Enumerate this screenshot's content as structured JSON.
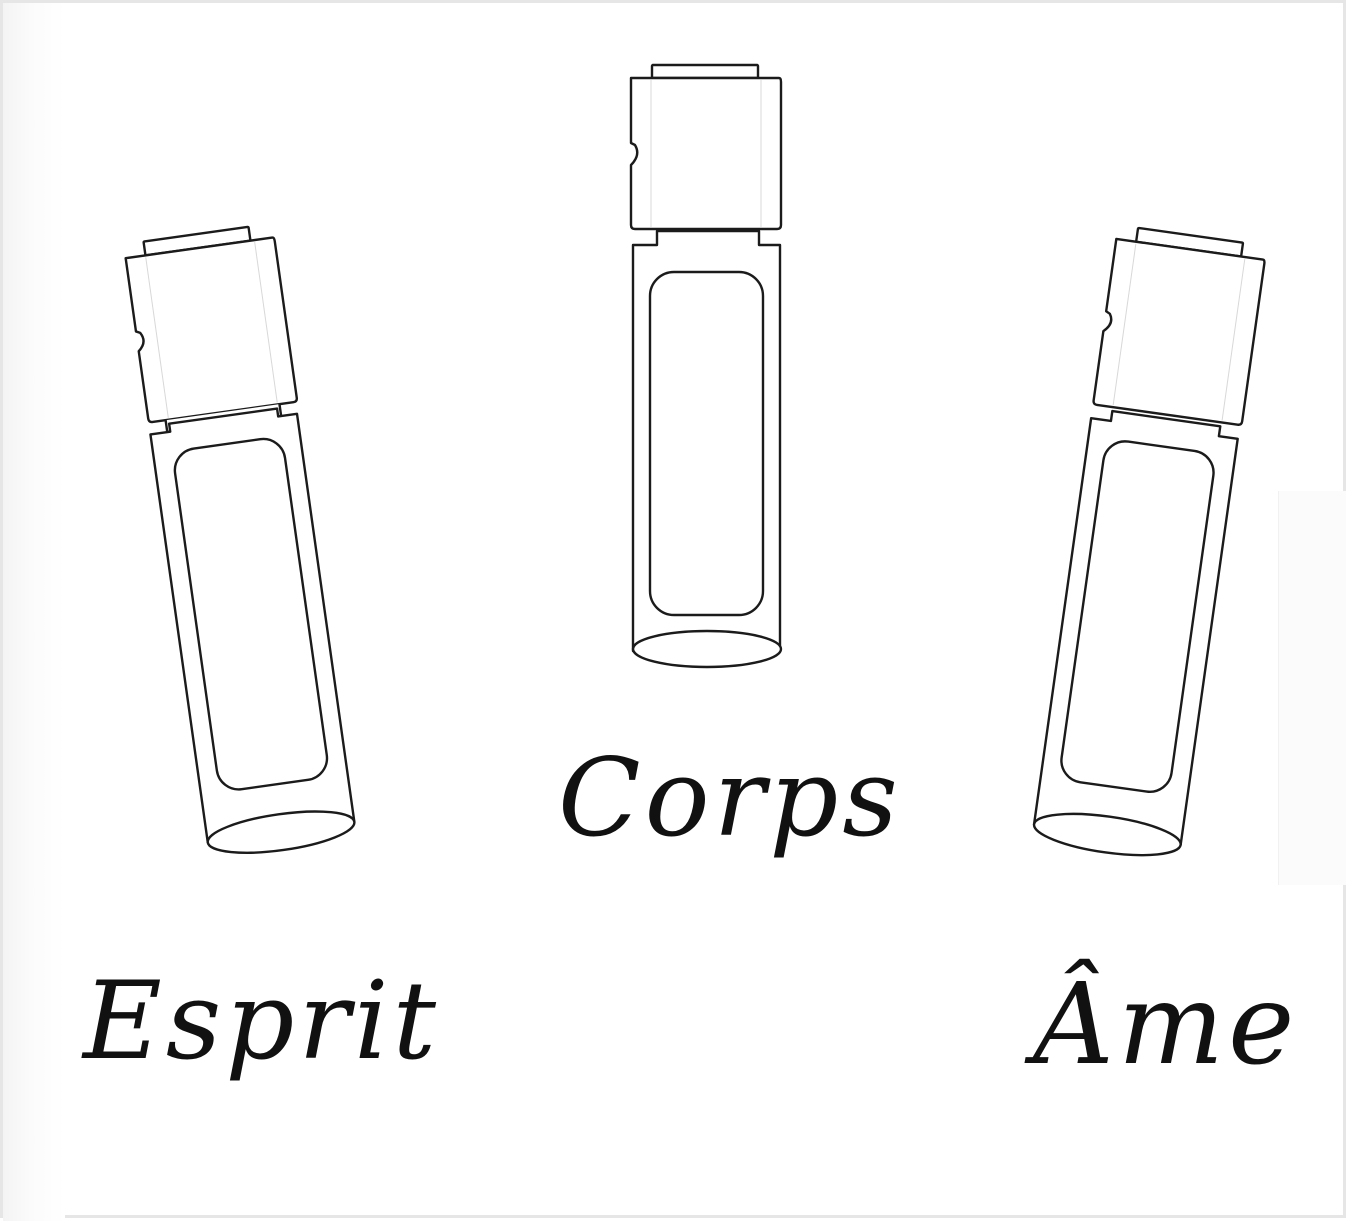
{
  "labels": {
    "esprit": "Esprit",
    "corps": "Corps",
    "ame": "Âme"
  },
  "colors": {
    "stroke": "#1b1b1b",
    "background": "#ffffff",
    "label": "#111111"
  }
}
